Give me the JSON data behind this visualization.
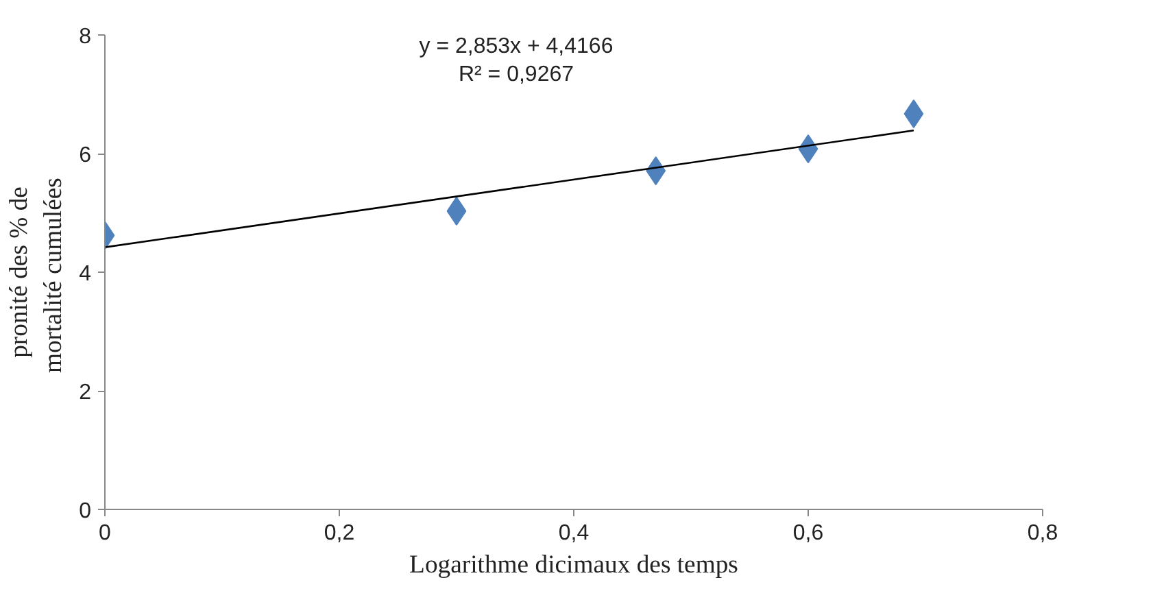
{
  "chart_data": {
    "type": "scatter",
    "xlabel": "Logarithme dicimaux des temps",
    "ylabel": "pronité des % de\nmortalité  cumulées",
    "series": [
      {
        "color": "#4f81bd",
        "marker": "diamond",
        "x": [
          0,
          0.3,
          0.47,
          0.6,
          0.69
        ],
        "values": [
          4.62,
          5.03,
          5.71,
          6.08,
          6.67
        ]
      },
      {
        "type": "line",
        "color": "#000000",
        "x": [
          0,
          0.69
        ],
        "values": [
          4.42,
          6.39
        ]
      }
    ],
    "annotations": [
      "y = 2,853x + 4,4166\nR² = 0,9267"
    ],
    "xlim": [
      0,
      0.8
    ],
    "ylim": [
      0,
      8
    ],
    "xticks": [
      0,
      {
        "value": 0.2,
        "label": "0,2"
      },
      {
        "value": 0.4,
        "label": "0,4"
      },
      {
        "value": 0.6,
        "label": "0,6"
      },
      {
        "value": 0.8,
        "label": "0,8"
      }
    ],
    "yticks": [
      0,
      2,
      4,
      6,
      8
    ]
  }
}
